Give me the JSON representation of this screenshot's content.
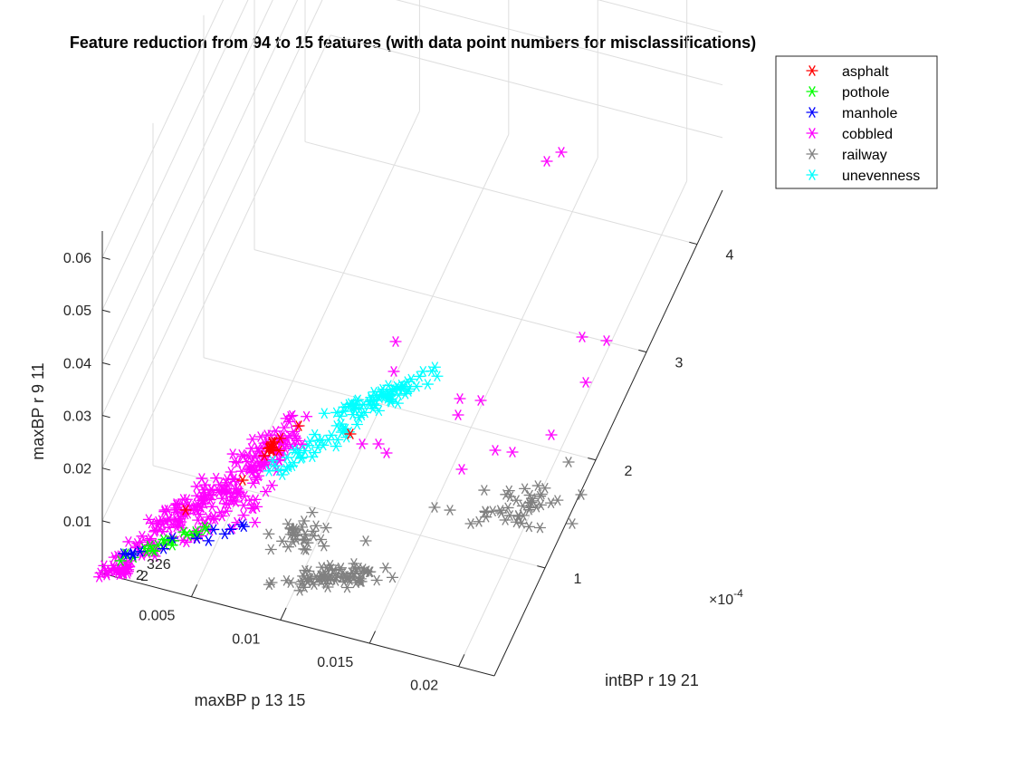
{
  "chart_data": {
    "type": "scatter",
    "title": "Feature reduction from 94 to 15 features (with data point numbers for misclassifications)",
    "xlabel": "maxBP p 13 15",
    "ylabel": "intBP r 19 21",
    "zlabel": "maxBP r 9 11",
    "y_exponent": "×10",
    "y_exponent_power": "-4",
    "xlim": [
      0,
      0.022
    ],
    "ylim": [
      0,
      0.00045
    ],
    "zlim": [
      0,
      0.065
    ],
    "x_ticks": [
      "0.005",
      "0.01",
      "0.015",
      "0.02"
    ],
    "y_ticks": [
      "1",
      "2",
      "3",
      "4"
    ],
    "z_ticks": [
      "0.01",
      "0.02",
      "0.03",
      "0.04",
      "0.05",
      "0.06"
    ],
    "grid": true,
    "legend_position": "top-right",
    "marker": "*",
    "series": [
      {
        "name": "asphalt",
        "color": "#ff0000"
      },
      {
        "name": "pothole",
        "color": "#00ff00"
      },
      {
        "name": "manhole",
        "color": "#0000ff"
      },
      {
        "name": "cobbled",
        "color": "#ff00ff"
      },
      {
        "name": "railway",
        "color": "#808080"
      },
      {
        "name": "unevenness",
        "color": "#00ffff"
      }
    ],
    "annotations": [
      "326",
      "2"
    ]
  }
}
